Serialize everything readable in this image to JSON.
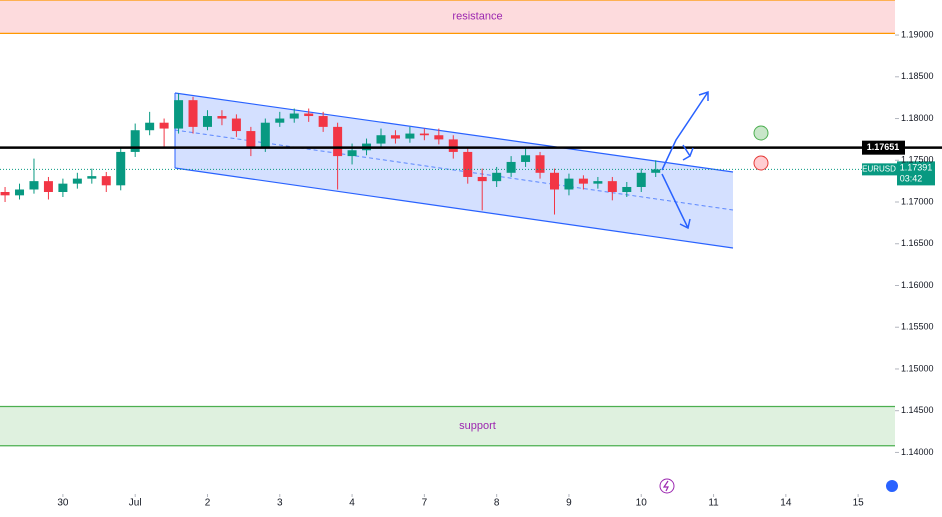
{
  "chart_data": {
    "type": "candlestick",
    "symbol": "EURUSD",
    "x": [
      -0.8,
      -0.6,
      -0.4,
      -0.2,
      0,
      0.2,
      0.4,
      0.6,
      0.8,
      1,
      1.2,
      1.4,
      1.6,
      1.8,
      2,
      2.2,
      2.4,
      2.6,
      2.8,
      3,
      3.2,
      3.4,
      3.6,
      3.8,
      4,
      4.2,
      4.4,
      4.6,
      4.8,
      5,
      5.2,
      5.4,
      5.6,
      5.8,
      6,
      6.2,
      6.4,
      6.6,
      6.8,
      7,
      7.2,
      7.4,
      7.6,
      7.8,
      8,
      8.2
    ],
    "open": [
      1.1712,
      1.1708,
      1.1715,
      1.1725,
      1.1712,
      1.1722,
      1.1728,
      1.1731,
      1.172,
      1.176,
      1.1786,
      1.1795,
      1.1788,
      1.1822,
      1.179,
      1.1803,
      1.18,
      1.1785,
      1.1765,
      1.1795,
      1.18,
      1.1806,
      1.1803,
      1.179,
      1.1755,
      1.1762,
      1.177,
      1.178,
      1.1776,
      1.1782,
      1.178,
      1.1775,
      1.176,
      1.173,
      1.1725,
      1.1735,
      1.1748,
      1.1756,
      1.1735,
      1.1715,
      1.1728,
      1.1722,
      1.1725,
      1.1712,
      1.1718,
      1.1735
    ],
    "high": [
      1.1718,
      1.1722,
      1.1752,
      1.173,
      1.1728,
      1.1735,
      1.174,
      1.1736,
      1.1766,
      1.1794,
      1.1808,
      1.18,
      1.183,
      1.1826,
      1.181,
      1.181,
      1.1805,
      1.179,
      1.18,
      1.1808,
      1.1812,
      1.1812,
      1.1808,
      1.1795,
      1.177,
      1.1776,
      1.1788,
      1.1786,
      1.179,
      1.1788,
      1.1788,
      1.178,
      1.1765,
      1.174,
      1.1742,
      1.1755,
      1.1765,
      1.176,
      1.174,
      1.1734,
      1.1732,
      1.173,
      1.173,
      1.1724,
      1.174,
      1.175
    ],
    "low": [
      1.17,
      1.1703,
      1.171,
      1.1703,
      1.1706,
      1.1716,
      1.1722,
      1.1712,
      1.1714,
      1.1754,
      1.178,
      1.1765,
      1.1782,
      1.1782,
      1.1786,
      1.1792,
      1.1778,
      1.1755,
      1.176,
      1.179,
      1.1795,
      1.1796,
      1.1784,
      1.1715,
      1.1745,
      1.1756,
      1.1765,
      1.177,
      1.1771,
      1.1774,
      1.1769,
      1.1752,
      1.1722,
      1.169,
      1.1718,
      1.173,
      1.1742,
      1.1728,
      1.1685,
      1.1708,
      1.1715,
      1.1716,
      1.1702,
      1.1706,
      1.1712,
      1.173
    ],
    "close": [
      1.1708,
      1.1715,
      1.1725,
      1.1712,
      1.1722,
      1.1728,
      1.1731,
      1.172,
      1.176,
      1.1786,
      1.1795,
      1.1788,
      1.1822,
      1.179,
      1.1803,
      1.18,
      1.1785,
      1.1765,
      1.1795,
      1.18,
      1.1806,
      1.1803,
      1.179,
      1.1755,
      1.1762,
      1.177,
      1.178,
      1.1776,
      1.1782,
      1.178,
      1.1775,
      1.176,
      1.173,
      1.1725,
      1.1735,
      1.1748,
      1.1756,
      1.1735,
      1.1715,
      1.1728,
      1.1722,
      1.1725,
      1.1712,
      1.1718,
      1.1735,
      1.1739
    ],
    "up_color": "#089981",
    "down_color": "#f23645",
    "xlim": [
      -0.87,
      11.51
    ],
    "xticks": [
      {
        "value": 0,
        "label": "30"
      },
      {
        "value": 1,
        "label": "Jul"
      },
      2,
      3,
      4,
      {
        "value": 5,
        "label": "7"
      },
      {
        "value": 6,
        "label": "8"
      },
      {
        "value": 7,
        "label": "9"
      },
      {
        "value": 8,
        "label": "10"
      },
      {
        "value": 9,
        "label": "11"
      },
      {
        "value": 10,
        "label": "14"
      },
      {
        "value": 11,
        "label": "15"
      }
    ],
    "ylim": [
      1.1355,
      1.1942
    ],
    "yticks": [
      {
        "value": 1.19,
        "label": "1.19000"
      },
      {
        "value": 1.185,
        "label": "1.18500"
      },
      {
        "value": 1.18,
        "label": "1.18000"
      },
      {
        "value": 1.175,
        "label": "1.17500"
      },
      {
        "value": 1.17,
        "label": "1.17000"
      },
      {
        "value": 1.165,
        "label": "1.16500"
      },
      {
        "value": 1.16,
        "label": "1.16000"
      },
      {
        "value": 1.155,
        "label": "1.15500"
      },
      {
        "value": 1.15,
        "label": "1.15000"
      },
      {
        "value": 1.145,
        "label": "1.14500"
      },
      {
        "value": 1.14,
        "label": "1.14000"
      }
    ],
    "grid": false,
    "resistance_zone": {
      "label": "resistance",
      "range": [
        1.1902,
        1.1942
      ]
    },
    "support_zone": {
      "label": "support",
      "range": [
        1.1408,
        1.1455
      ]
    },
    "level": 1.17651,
    "current_price": 1.17391,
    "countdown": "03:42"
  }
}
